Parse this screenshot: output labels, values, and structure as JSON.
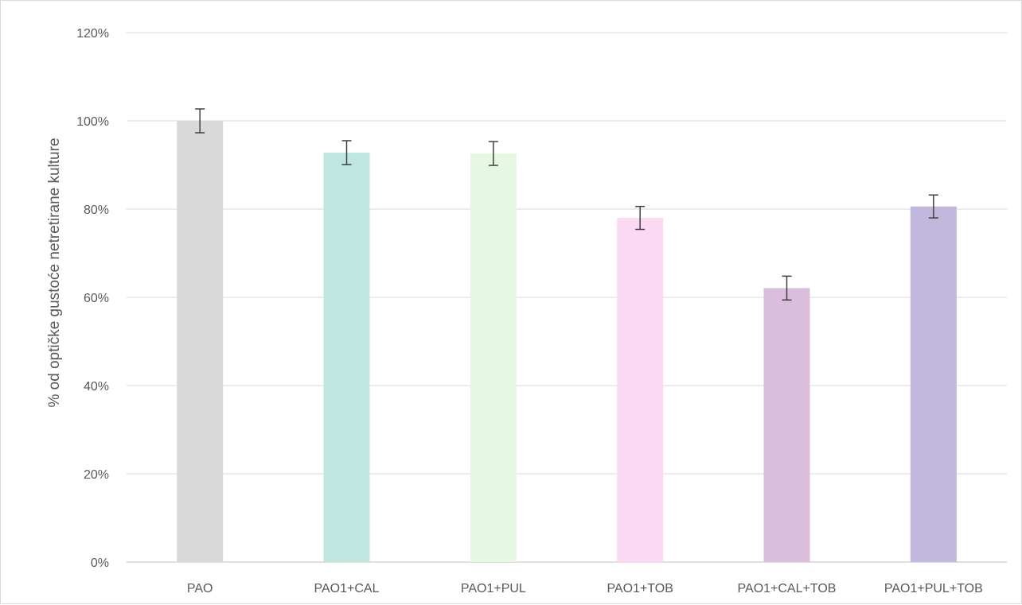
{
  "chart_data": {
    "type": "bar",
    "title": "",
    "xlabel": "",
    "ylabel": "% od optičke gustoće netretirane kulture",
    "ylim": [
      0,
      120
    ],
    "ytick_values": [
      0,
      20,
      40,
      60,
      80,
      100,
      120
    ],
    "ytick_labels": [
      "0%",
      "20%",
      "40%",
      "60%",
      "80%",
      "100%",
      "120%"
    ],
    "grid": true,
    "legend": "none",
    "categories": [
      "PAO",
      "PAO1+CAL",
      "PAO1+PUL",
      "PAO1+TOB",
      "PAO1+CAL+TOB",
      "PAO1+PUL+TOB"
    ],
    "values": [
      100,
      92.8,
      92.6,
      78,
      62.1,
      80.6
    ],
    "error": [
      2.7,
      2.7,
      2.7,
      2.6,
      2.7,
      2.6
    ],
    "colors": [
      "#d9d9d9",
      "#c0e6e2",
      "#e6f8e1",
      "#fcd9f2",
      "#dbbedd",
      "#c2b7dc"
    ]
  }
}
